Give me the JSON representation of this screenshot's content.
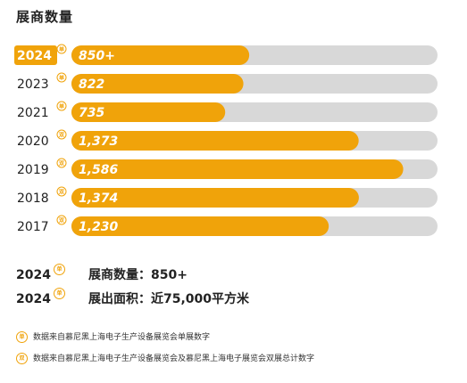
{
  "title": "展商数量",
  "colors": {
    "bar": "#f0a30a",
    "track": "#d8d8d8",
    "badge": "#f0a30a",
    "highlight_label": "#f0a30a"
  },
  "chart_data": {
    "type": "bar",
    "orientation": "horizontal",
    "categories": [
      "2024",
      "2023",
      "2021",
      "2020",
      "2019",
      "2018",
      "2017"
    ],
    "values": [
      850,
      822,
      735,
      1373,
      1586,
      1374,
      1230
    ],
    "value_labels": [
      "850+",
      "822",
      "735",
      "1,373",
      "1,586",
      "1,374",
      "1,230"
    ],
    "badges": [
      "单",
      "单",
      "单",
      "双",
      "双",
      "双",
      "双"
    ],
    "highlighted": "2024",
    "xlim": [
      0,
      1750
    ],
    "grid": false
  },
  "summary": [
    {
      "year": "2024",
      "badge": "单",
      "text": "展商数量：850+"
    },
    {
      "year": "2024",
      "badge": "单",
      "text": "展出面积：近75,000平方米"
    }
  ],
  "notes": [
    {
      "badge": "单",
      "text": "数据来自慕尼黑上海电子生产设备展览会单展数字"
    },
    {
      "badge": "双",
      "text": "数据来自慕尼黑上海电子生产设备展览会及慕尼黑上海电子展览会双展总计数字"
    }
  ]
}
